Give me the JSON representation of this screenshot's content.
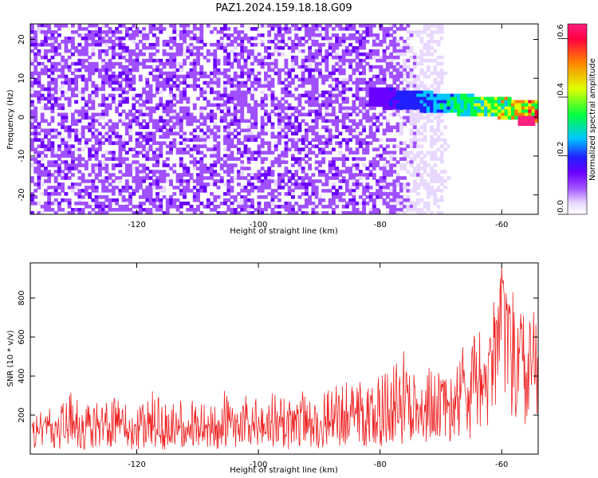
{
  "figure": {
    "title": "PAZ1.2024.159.18.18.G09"
  },
  "chart_data": [
    {
      "type": "heatmap",
      "xlabel": "Height of straight line (km)",
      "ylabel": "Frequency (Hz)",
      "xlim": [
        -137.5,
        -54
      ],
      "ylim": [
        -25,
        24
      ],
      "xticks": [
        -120,
        -100,
        -80,
        -60
      ],
      "yticks": [
        -20,
        -10,
        0,
        10,
        20
      ],
      "grid": false,
      "colorbar": {
        "label": "Normalized spectral amplitude",
        "range": [
          0.0,
          0.65
        ],
        "ticks": [
          0.0,
          0.2,
          0.4,
          0.6
        ],
        "colors": [
          "#ffffff",
          "#e8d8ff",
          "#a050ff",
          "#6a00ff",
          "#2020ff",
          "#00c8ff",
          "#00ff40",
          "#e0ff00",
          "#ff8000",
          "#ff0040",
          "#ff2080"
        ]
      },
      "features": [
        {
          "x_range": [
            -137,
            -55
          ],
          "y_range": [
            -25,
            24
          ],
          "value": 0.05,
          "note": "diffuse background"
        },
        {
          "x_range": [
            -80,
            -54
          ],
          "y_range": [
            0,
            8
          ],
          "value": 0.35,
          "note": "high-amplitude band"
        },
        {
          "x": -56,
          "y": -1,
          "value": 0.62,
          "note": "peak"
        }
      ]
    },
    {
      "type": "line",
      "xlabel": "Height of straight line (km)",
      "ylabel": "SNR (10 * v/v)",
      "xlim": [
        -137.5,
        -54
      ],
      "ylim": [
        0,
        980
      ],
      "xticks": [
        -120,
        -100,
        -80,
        -60
      ],
      "yticks": [
        200,
        400,
        600,
        800
      ],
      "color": "#ee2222",
      "grid": false,
      "series": [
        {
          "x": [
            -137,
            -135,
            -133,
            -131,
            -129,
            -127,
            -125,
            -123,
            -121,
            -119,
            -117,
            -115,
            -113,
            -111,
            -109,
            -107,
            -105,
            -103,
            -101,
            -99,
            -97,
            -95,
            -93,
            -91,
            -89,
            -87,
            -85,
            -83,
            -81,
            -79,
            -77,
            -75,
            -73,
            -71,
            -69,
            -67,
            -65,
            -63,
            -62,
            -61,
            -60,
            -59,
            -58,
            -57,
            -56,
            -55,
            -54.5
          ],
          "y": [
            110,
            150,
            120,
            160,
            130,
            140,
            120,
            150,
            130,
            160,
            140,
            120,
            150,
            130,
            140,
            150,
            170,
            160,
            140,
            150,
            160,
            140,
            150,
            170,
            160,
            180,
            200,
            190,
            170,
            200,
            230,
            250,
            220,
            250,
            270,
            300,
            330,
            380,
            450,
            600,
            900,
            700,
            550,
            500,
            450,
            520,
            600
          ],
          "envelope_min": [
            20,
            30,
            25,
            30,
            20,
            30,
            25,
            30,
            20,
            25,
            30,
            20,
            25,
            30,
            20,
            25,
            30,
            20,
            25,
            30,
            20,
            25,
            30,
            20,
            30,
            40,
            50,
            40,
            30,
            40,
            50,
            60,
            40,
            50,
            60,
            70,
            80,
            100,
            120,
            150,
            250,
            200,
            150,
            120,
            100,
            150,
            200
          ],
          "envelope_max": [
            220,
            260,
            230,
            360,
            240,
            270,
            280,
            300,
            250,
            270,
            340,
            260,
            280,
            290,
            300,
            280,
            360,
            320,
            300,
            310,
            330,
            300,
            320,
            350,
            340,
            380,
            420,
            400,
            370,
            440,
            500,
            560,
            450,
            500,
            520,
            560,
            600,
            650,
            720,
            870,
            980,
            880,
            820,
            760,
            700,
            780,
            820
          ]
        }
      ]
    }
  ]
}
